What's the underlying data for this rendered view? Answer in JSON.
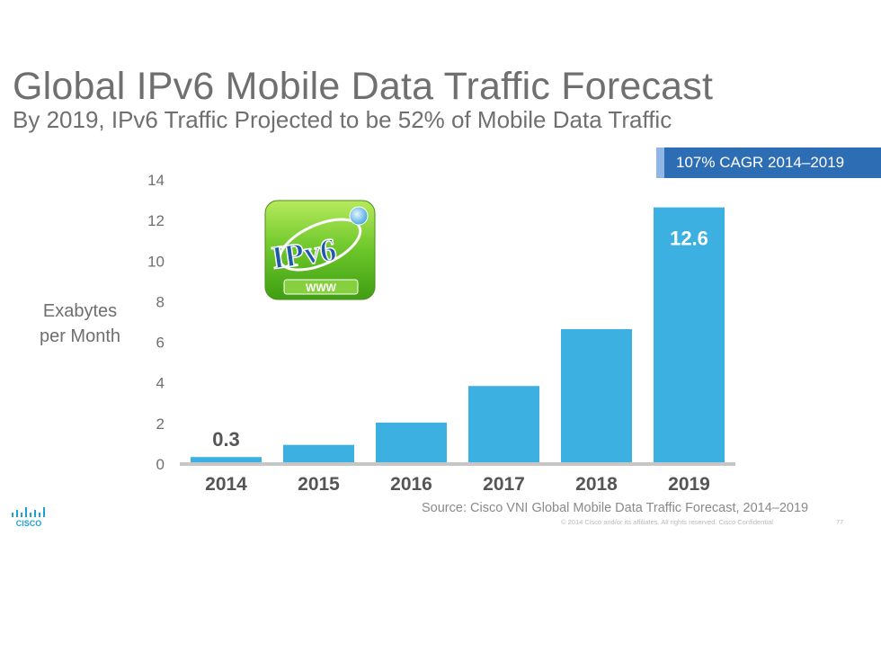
{
  "slide": {
    "title": "Global IPv6 Mobile Data Traffic Forecast",
    "subtitle": "By 2019, IPv6 Traffic Projected to be 52% of Mobile Data Traffic",
    "cagr_badge": "107% CAGR 2014–2019",
    "ylabel_line1": "Exabytes",
    "ylabel_line2": "per Month",
    "source": "Source: Cisco VNI Global Mobile Data Traffic Forecast, 2014–2019",
    "copyright": "© 2014  Cisco and/or its affiliates. All rights reserved.   Cisco Confidential",
    "page_number": "77",
    "logo_text": "IPv6",
    "logo_banner": "WWW",
    "brand": "CISCO"
  },
  "colors": {
    "bar": "#3cb0e0",
    "title": "#6f6f6f",
    "badge": "#2d6db4",
    "badge_accent": "#8fb6e4",
    "axis": "#c6c6c6",
    "brand_blue": "#1ba0d7"
  },
  "chart_data": {
    "type": "bar",
    "title": "Global IPv6 Mobile Data Traffic Forecast",
    "xlabel": "",
    "ylabel": "Exabytes per Month",
    "categories": [
      "2014",
      "2015",
      "2016",
      "2017",
      "2018",
      "2019"
    ],
    "values": [
      0.3,
      0.9,
      2.0,
      3.8,
      6.6,
      12.6
    ],
    "data_labels": [
      "0.3",
      "",
      "",
      "",
      "",
      "12.6"
    ],
    "ylim": [
      0,
      14
    ],
    "yticks": [
      0,
      2,
      4,
      6,
      8,
      10,
      12,
      14
    ],
    "grid": false,
    "legend": "none"
  }
}
